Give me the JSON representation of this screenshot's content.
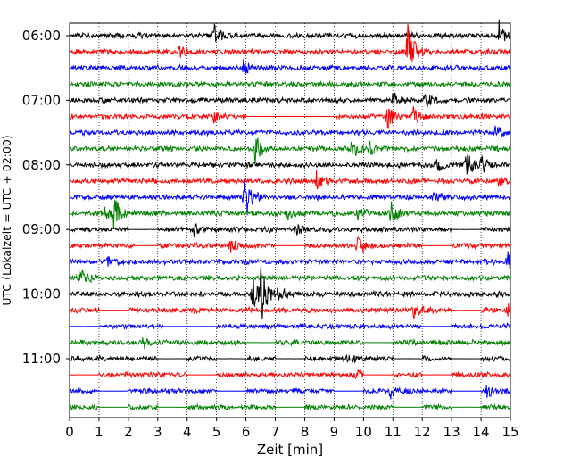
{
  "chart_data": {
    "type": "line",
    "title": "",
    "xlabel": "Zeit  [min]",
    "ylabel": "UTC (Lokalzeit = UTC + 02:00)",
    "xlim": [
      0,
      15
    ],
    "x_ticks": [
      "0",
      "1",
      "2",
      "3",
      "4",
      "5",
      "6",
      "7",
      "8",
      "9",
      "10",
      "11",
      "12",
      "13",
      "14",
      "15"
    ],
    "y_tick_labels": [
      "06:00",
      "07:00",
      "08:00",
      "09:00",
      "10:00",
      "11:00"
    ],
    "trace_interval_min": 15,
    "first_trace": "06:00",
    "grid": "vertical dotted",
    "series_colors": [
      "#000000",
      "#ff0000",
      "#0000ff",
      "#008000"
    ],
    "traces": [
      {
        "start": "06:00",
        "color": "#000000",
        "events": [
          [
            4.9,
            0.9
          ],
          [
            14.6,
            1.1
          ]
        ],
        "gaps": []
      },
      {
        "start": "06:15",
        "color": "#ff0000",
        "events": [
          [
            11.5,
            2.6
          ],
          [
            3.7,
            0.5
          ]
        ],
        "gaps": []
      },
      {
        "start": "06:30",
        "color": "#0000ff",
        "events": [
          [
            5.9,
            0.7
          ]
        ],
        "gaps": []
      },
      {
        "start": "06:45",
        "color": "#008000",
        "events": [],
        "gaps": []
      },
      {
        "start": "07:00",
        "color": "#000000",
        "events": [
          [
            11.0,
            0.7
          ],
          [
            12.1,
            0.6
          ]
        ],
        "gaps": []
      },
      {
        "start": "07:15",
        "color": "#ff0000",
        "events": [
          [
            10.8,
            1.0
          ],
          [
            11.7,
            0.7
          ],
          [
            4.9,
            0.5
          ]
        ],
        "gaps": [
          [
            6.0,
            9.0
          ]
        ]
      },
      {
        "start": "07:30",
        "color": "#0000ff",
        "events": [
          [
            14.5,
            0.6
          ]
        ],
        "gaps": []
      },
      {
        "start": "07:45",
        "color": "#008000",
        "events": [
          [
            6.3,
            1.2
          ],
          [
            9.6,
            0.9
          ],
          [
            10.2,
            0.5
          ]
        ],
        "gaps": []
      },
      {
        "start": "08:00",
        "color": "#000000",
        "events": [
          [
            13.5,
            1.0
          ],
          [
            14.0,
            0.7
          ],
          [
            12.5,
            0.5
          ]
        ],
        "gaps": []
      },
      {
        "start": "08:15",
        "color": "#ff0000",
        "events": [
          [
            8.4,
            0.7
          ],
          [
            14.6,
            0.4
          ]
        ],
        "gaps": []
      },
      {
        "start": "08:30",
        "color": "#0000ff",
        "events": [
          [
            5.95,
            2.2
          ],
          [
            12.4,
            0.4
          ]
        ],
        "gaps": []
      },
      {
        "start": "08:45",
        "color": "#008000",
        "events": [
          [
            1.5,
            1.3
          ],
          [
            1.2,
            0.5
          ],
          [
            7.4,
            0.5
          ],
          [
            10.9,
            1.0
          ],
          [
            9.8,
            0.5
          ]
        ],
        "gaps": []
      },
      {
        "start": "09:00",
        "color": "#000000",
        "events": [
          [
            4.2,
            0.6
          ],
          [
            7.7,
            0.5
          ]
        ],
        "gaps": [
          [
            2.0,
            3.0
          ],
          [
            13.0,
            14.0
          ]
        ]
      },
      {
        "start": "09:15",
        "color": "#ff0000",
        "events": [
          [
            9.8,
            1.1
          ],
          [
            5.5,
            0.5
          ]
        ],
        "gaps": [
          [
            2.2,
            3.0
          ],
          [
            7.0,
            8.0
          ],
          [
            12.0,
            13.0
          ]
        ]
      },
      {
        "start": "09:30",
        "color": "#0000ff",
        "events": [
          [
            14.9,
            1.2
          ],
          [
            1.3,
            0.5
          ]
        ],
        "gaps": []
      },
      {
        "start": "09:45",
        "color": "#008000",
        "events": [
          [
            0.3,
            1.1
          ]
        ],
        "gaps": []
      },
      {
        "start": "10:00",
        "color": "#000000",
        "events": [
          [
            6.5,
            2.2
          ],
          [
            6.2,
            1.3
          ],
          [
            7.1,
            0.6
          ]
        ],
        "gaps": []
      },
      {
        "start": "10:15",
        "color": "#ff0000",
        "events": [
          [
            11.7,
            0.7
          ],
          [
            14.9,
            0.5
          ]
        ],
        "gaps": [
          [
            1.0,
            2.0
          ],
          [
            13.0,
            14.0
          ]
        ]
      },
      {
        "start": "10:30",
        "color": "#0000ff",
        "events": [],
        "gaps": [
          [
            0.0,
            1.0
          ],
          [
            3.2,
            5.0
          ],
          [
            12.0,
            13.0
          ]
        ]
      },
      {
        "start": "10:45",
        "color": "#008000",
        "events": [
          [
            2.5,
            0.5
          ]
        ],
        "gaps": [
          [
            6.0,
            7.0
          ],
          [
            10.0,
            11.0
          ]
        ]
      },
      {
        "start": "11:00",
        "color": "#000000",
        "events": [
          [
            9.5,
            0.6
          ]
        ],
        "gaps": [
          [
            3.0,
            4.0
          ],
          [
            5.0,
            6.0
          ],
          [
            7.0,
            8.0
          ],
          [
            11.0,
            12.0
          ],
          [
            13.0,
            14.0
          ]
        ]
      },
      {
        "start": "11:15",
        "color": "#ff0000",
        "events": [
          [
            9.7,
            0.5
          ]
        ],
        "gaps": [
          [
            0.0,
            1.0
          ],
          [
            4.0,
            5.0
          ],
          [
            10.0,
            11.0
          ],
          [
            12.0,
            13.0
          ]
        ]
      },
      {
        "start": "11:30",
        "color": "#0000ff",
        "events": [
          [
            10.9,
            0.6
          ],
          [
            14.2,
            0.5
          ]
        ],
        "gaps": [
          [
            1.0,
            2.0
          ],
          [
            5.0,
            6.0
          ],
          [
            9.0,
            10.0
          ],
          [
            13.0,
            14.0
          ]
        ]
      },
      {
        "start": "11:45",
        "color": "#008000",
        "events": [],
        "gaps": [
          [
            1.0,
            2.0
          ],
          [
            3.0,
            4.0
          ],
          [
            7.0,
            8.0
          ],
          [
            11.0,
            12.0
          ],
          [
            13.0,
            14.0
          ]
        ]
      }
    ]
  }
}
